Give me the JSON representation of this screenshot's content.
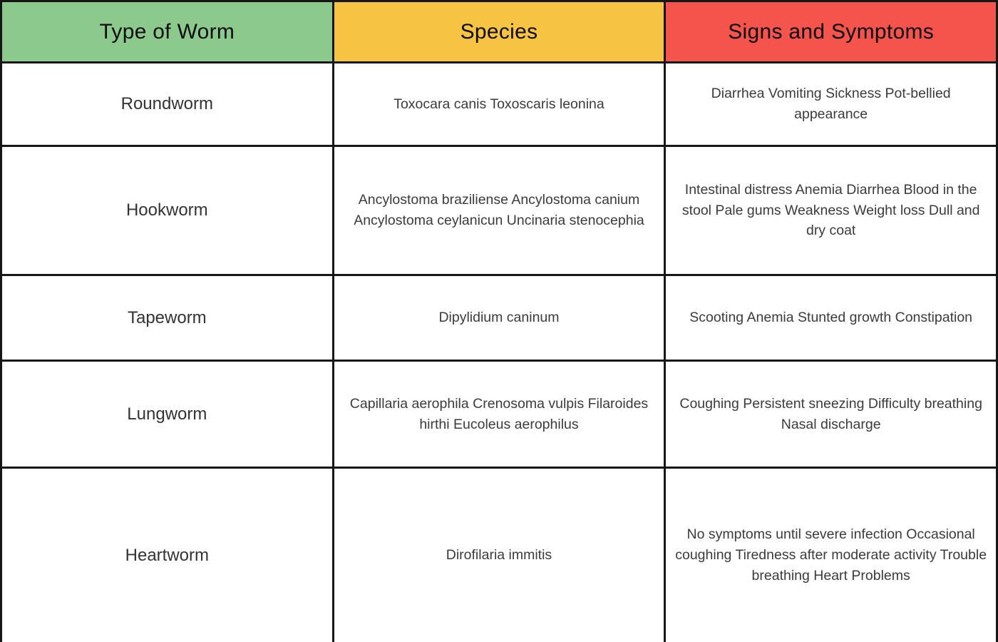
{
  "table": {
    "headers": [
      {
        "label": "Type of Worm",
        "bg": "#8BCA8C"
      },
      {
        "label": "Species",
        "bg": "#F7C342"
      },
      {
        "label": "Signs and Symptoms",
        "bg": "#F4544C"
      }
    ],
    "rows": [
      {
        "type": "Roundworm",
        "species": "Toxocara canis Toxoscaris leonina",
        "signs": "Diarrhea Vomiting Sickness Pot-bellied appearance"
      },
      {
        "type": "Hookworm",
        "species": "Ancylostoma braziliense Ancylostoma canium Ancylostoma ceylanicun Uncinaria stenocephia",
        "signs": "Intestinal distress Anemia Diarrhea Blood in the stool Pale gums Weakness Weight loss Dull and dry coat"
      },
      {
        "type": "Tapeworm",
        "species": "Dipylidium caninum",
        "signs": "Scooting Anemia Stunted growth Constipation"
      },
      {
        "type": "Lungworm",
        "species": "Capillaria aerophila Crenosoma vulpis Filaroides hirthi Eucoleus aerophilus",
        "signs": "Coughing Persistent sneezing Difficulty breathing Nasal discharge"
      },
      {
        "type": "Heartworm",
        "species": "Dirofilaria immitis",
        "signs": "No symptoms until severe infection Occasional coughing Tiredness after moderate activity Trouble breathing Heart Problems"
      }
    ],
    "colors": {
      "border": "#161616",
      "header_text": "#0d0d0d",
      "body_text": "#3b3b3b",
      "header_green": "#8BCA8C",
      "header_yellow": "#F7C342",
      "header_red": "#F4544C"
    }
  }
}
